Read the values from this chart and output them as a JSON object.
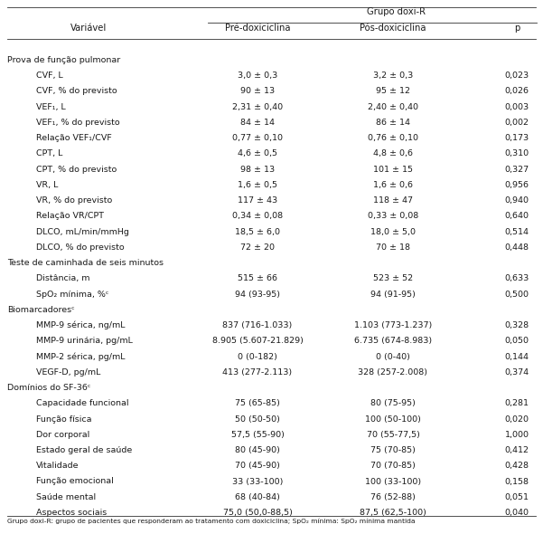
{
  "header_group": "Grupo doxi-R",
  "col_headers": [
    "Variável",
    "Pré-doxiciclina",
    "Pós-doxiciclina",
    "p"
  ],
  "sections": [
    {
      "title": "Prova de função pulmonar",
      "rows": [
        [
          "CVF, L",
          "3,0 ± 0,3",
          "3,2 ± 0,3",
          "0,023"
        ],
        [
          "CVF, % do previsto",
          "90 ± 13",
          "95 ± 12",
          "0,026"
        ],
        [
          "VEF₁, L",
          "2,31 ± 0,40",
          "2,40 ± 0,40",
          "0,003"
        ],
        [
          "VEF₁, % do previsto",
          "84 ± 14",
          "86 ± 14",
          "0,002"
        ],
        [
          "Relação VEF₁/CVF",
          "0,77 ± 0,10",
          "0,76 ± 0,10",
          "0,173"
        ],
        [
          "CPT, L",
          "4,6 ± 0,5",
          "4,8 ± 0,6",
          "0,310"
        ],
        [
          "CPT, % do previsto",
          "98 ± 13",
          "101 ± 15",
          "0,327"
        ],
        [
          "VR, L",
          "1,6 ± 0,5",
          "1,6 ± 0,6",
          "0,956"
        ],
        [
          "VR, % do previsto",
          "117 ± 43",
          "118 ± 47",
          "0,940"
        ],
        [
          "Relação VR/CPT",
          "0,34 ± 0,08",
          "0,33 ± 0,08",
          "0,640"
        ],
        [
          "DLCO, mL/min/mmHg",
          "18,5 ± 6,0",
          "18,0 ± 5,0",
          "0,514"
        ],
        [
          "DLCO, % do previsto",
          "72 ± 20",
          "70 ± 18",
          "0,448"
        ]
      ]
    },
    {
      "title": "Teste de caminhada de seis minutos",
      "rows": [
        [
          "Distância, m",
          "515 ± 66",
          "523 ± 52",
          "0,633"
        ],
        [
          "SpO₂ mínima, %ᶜ",
          "94 (93-95)",
          "94 (91-95)",
          "0,500"
        ]
      ]
    },
    {
      "title": "Biomarcadoresᶜ",
      "rows": [
        [
          "MMP-9 sérica, ng/mL",
          "837 (716-1.033)",
          "1.103 (773-1.237)",
          "0,328"
        ],
        [
          "MMP-9 urinária, pg/mL",
          "8.905 (5.607-21.829)",
          "6.735 (674-8.983)",
          "0,050"
        ],
        [
          "MMP-2 sérica, pg/mL",
          "0 (0-182)",
          "0 (0-40)",
          "0,144"
        ],
        [
          "VEGF-D, pg/mL",
          "413 (277-2.113)",
          "328 (257-2.008)",
          "0,374"
        ]
      ]
    },
    {
      "title": "Domínios do SF-36ᶜ",
      "rows": [
        [
          "Capacidade funcional",
          "75 (65-85)",
          "80 (75-95)",
          "0,281"
        ],
        [
          "Função física",
          "50 (50-50)",
          "100 (50-100)",
          "0,020"
        ],
        [
          "Dor corporal",
          "57,5 (55-90)",
          "70 (55-77,5)",
          "1,000"
        ],
        [
          "Estado geral de saúde",
          "80 (45-90)",
          "75 (70-85)",
          "0,412"
        ],
        [
          "Vitalidade",
          "70 (45-90)",
          "70 (70-85)",
          "0,428"
        ],
        [
          "Função emocional",
          "33 (33-100)",
          "100 (33-100)",
          "0,158"
        ],
        [
          "Saúde mental",
          "68 (40-84)",
          "76 (52-88)",
          "0,051"
        ],
        [
          "Aspectos sociais",
          "75,0 (50,0-88,5)",
          "87,5 (62,5-100)",
          "0,040"
        ]
      ]
    }
  ],
  "footnote": "Grupo doxi-R: grupo de pacientes que responderam ao tratamento com doxiciclina; SpO₂ mínima: SpO₂ mínima mantida",
  "bg_color": "#ffffff",
  "text_color": "#1a1a1a",
  "line_color": "#333333",
  "header_fs": 7.2,
  "data_fs": 6.8,
  "section_fs": 6.8,
  "footnote_fs": 5.4
}
